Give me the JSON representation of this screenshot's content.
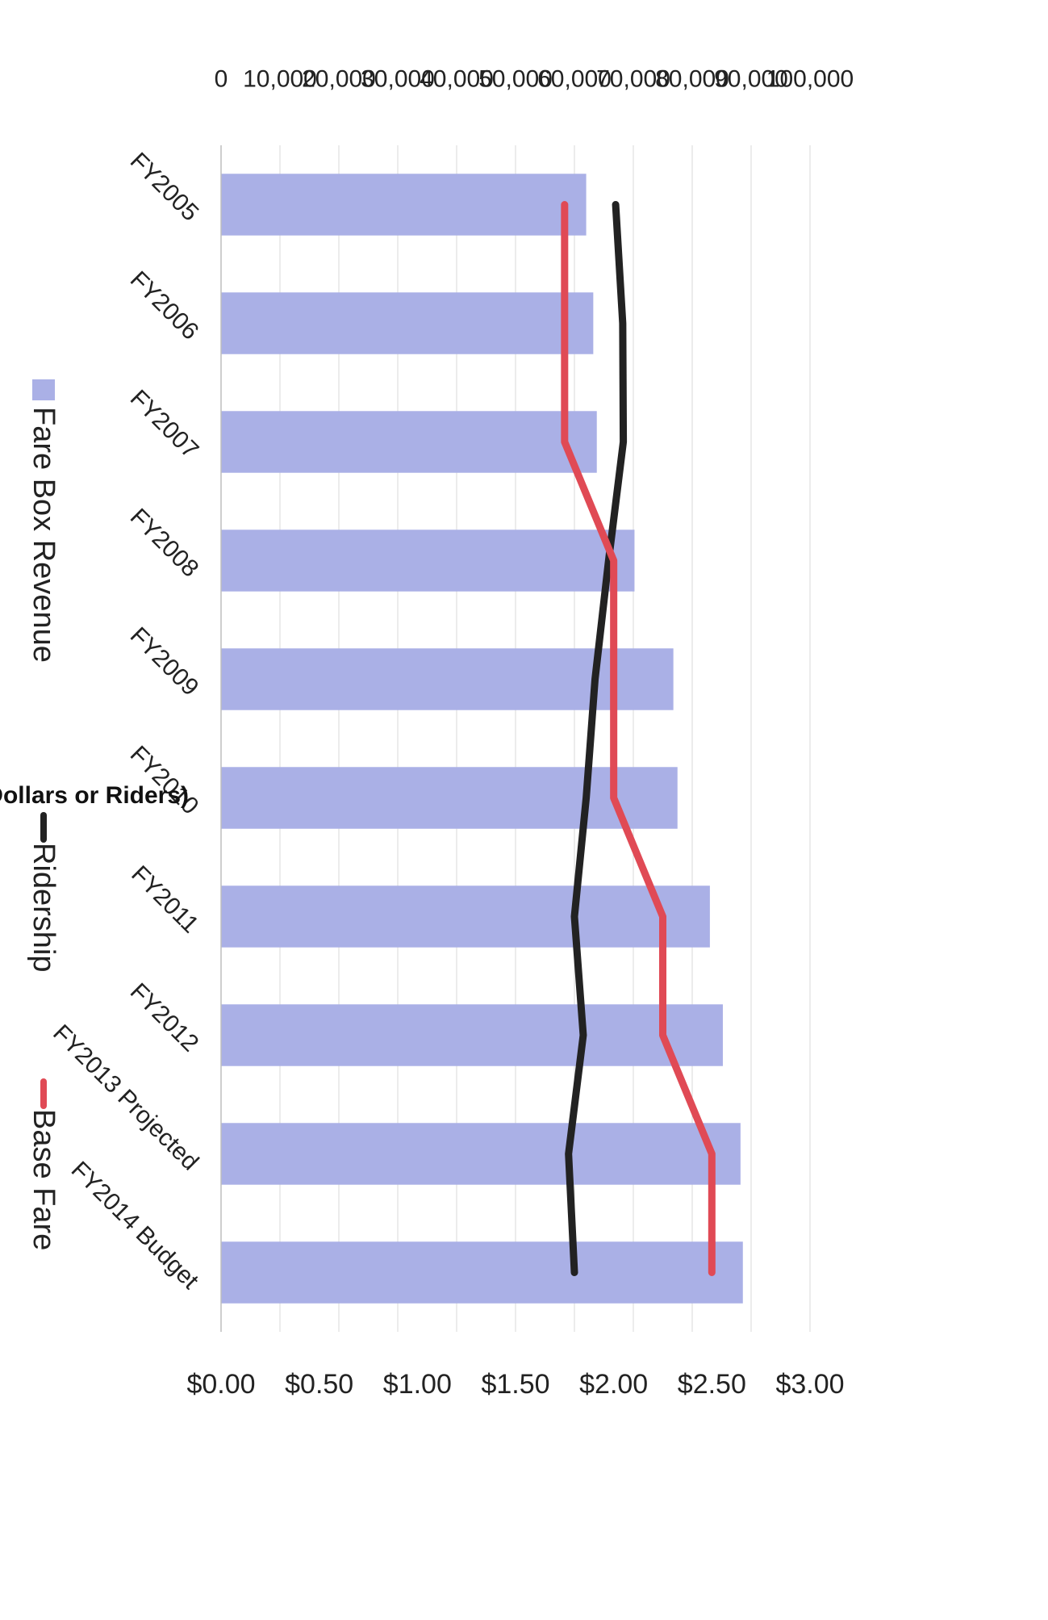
{
  "chart_data": {
    "type": "bar",
    "categories": [
      "FY2005",
      "FY2006",
      "FY2007",
      "FY2008",
      "FY2009",
      "FY2010",
      "FY2011",
      "FY2012",
      "FY2013 Projected",
      "FY2014 Budget"
    ],
    "ylabel": "Thousands (Dollars or Riders)",
    "ylim": [
      0,
      100000
    ],
    "y_ticks": [
      "0",
      "10,000",
      "20,000",
      "30,000",
      "40,000",
      "50,000",
      "60,000",
      "70,000",
      "80,000",
      "90,000",
      "100,000"
    ],
    "y2lim": [
      0,
      3.0
    ],
    "y2_ticks": [
      "$0.00",
      "$0.50",
      "$1.00",
      "$1.50",
      "$2.00",
      "$2.50",
      "$3.00"
    ],
    "series": [
      {
        "name": "Fare Box Revenue",
        "type": "bar",
        "color": "#aab0e6",
        "values": [
          62000,
          63200,
          63800,
          70200,
          76800,
          77500,
          83000,
          85200,
          88200,
          88600
        ]
      },
      {
        "name": "Ridership",
        "type": "line",
        "color": "#222222",
        "values": [
          67000,
          68200,
          68300,
          65800,
          63500,
          62000,
          60000,
          61500,
          59000,
          60000
        ]
      },
      {
        "name": "Base Fare",
        "type": "line",
        "axis": "secondary",
        "color": "#e04a55",
        "values": [
          1.75,
          1.75,
          1.75,
          2.0,
          2.0,
          2.0,
          2.25,
          2.25,
          2.5,
          2.5
        ]
      }
    ],
    "grid": true,
    "legend_position": "bottom",
    "orientation": "rotated"
  }
}
